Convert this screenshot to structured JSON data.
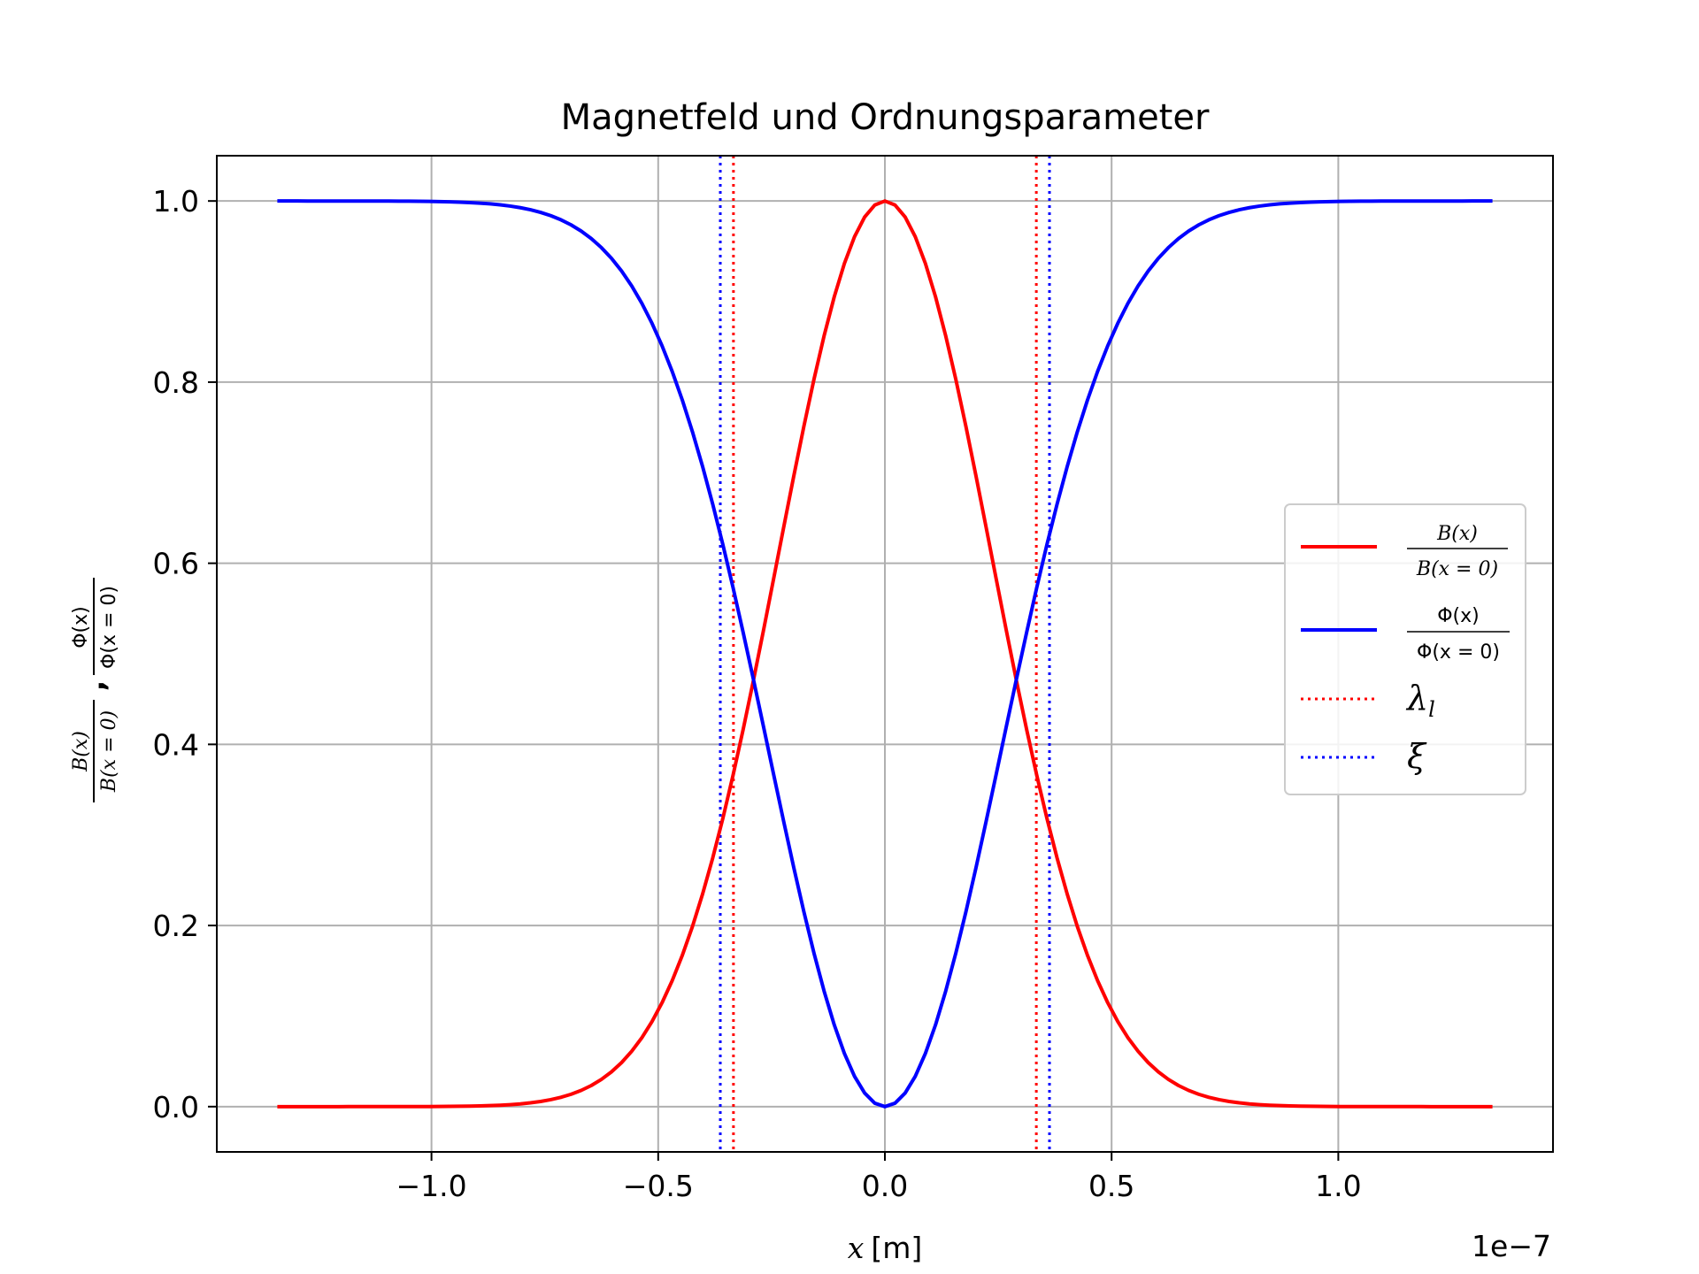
{
  "chart_data": {
    "type": "line",
    "title": "Magnetfeld und Ordnungsparameter",
    "xlabel_var": "x",
    "xlabel_unit": "[m]",
    "x_offset_text": "1e−7",
    "ylabel": {
      "num1": "B(x)",
      "den1": "B(x = 0)",
      "sep": ",",
      "num2": "Φ(x)",
      "den2": "Φ(x = 0)"
    },
    "x_scale": 1e-07,
    "xlim": [
      -1.4735,
      1.4735
    ],
    "ylim": [
      -0.05,
      1.05
    ],
    "x_ticks": [
      -1.0,
      -0.5,
      0.0,
      0.5,
      1.0
    ],
    "x_tick_labels": [
      "−1.0",
      "−0.5",
      "0.0",
      "0.5",
      "1.0"
    ],
    "y_ticks": [
      0.0,
      0.2,
      0.4,
      0.6,
      0.8,
      1.0
    ],
    "y_tick_labels": [
      "0.0",
      "0.2",
      "0.4",
      "0.6",
      "0.8",
      "1.0"
    ],
    "grid": true,
    "legend_position": "center-right",
    "x_range": [
      -1.34,
      1.34
    ],
    "series": [
      {
        "kind": "curve",
        "function": "B(x)/B(x=0) = exp(-(x/lambda)^2)",
        "lambda": 0.334,
        "color": "#ff0000",
        "legend_num": "B(x)",
        "legend_den": "B(x = 0)"
      },
      {
        "kind": "curve",
        "function": "Phi(x)/Phi(x=0) = 1 - exp(-(x/xi)^2)",
        "xi": 0.363,
        "color": "#0000ff",
        "legend_num": "Φ(x)",
        "legend_den": "Φ(x = 0)"
      },
      {
        "kind": "vlines",
        "x": [
          -0.334,
          0.334
        ],
        "color": "#ff0000",
        "style": "dotted",
        "legend_symbol": "λ",
        "legend_sub": "l"
      },
      {
        "kind": "vlines",
        "x": [
          -0.363,
          0.363
        ],
        "color": "#0000ff",
        "style": "dotted",
        "legend_symbol": "ξ"
      }
    ]
  }
}
